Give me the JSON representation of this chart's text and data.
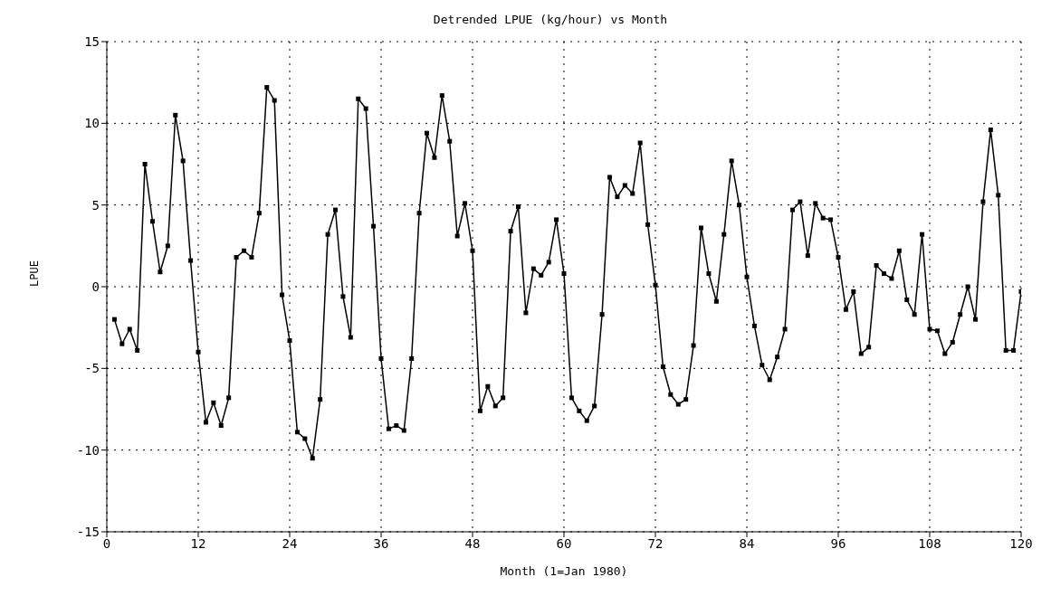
{
  "chart_data": {
    "type": "line",
    "title": "Detrended LPUE (kg/hour) vs Month",
    "xlabel": "Month (1=Jan 1980)",
    "ylabel": "LPUE",
    "x": [
      1,
      2,
      3,
      4,
      5,
      6,
      7,
      8,
      9,
      10,
      11,
      12,
      13,
      14,
      15,
      16,
      17,
      18,
      19,
      20,
      21,
      22,
      23,
      24,
      25,
      26,
      27,
      28,
      29,
      30,
      31,
      32,
      33,
      34,
      35,
      36,
      37,
      38,
      39,
      40,
      41,
      42,
      43,
      44,
      45,
      46,
      47,
      48,
      49,
      50,
      51,
      52,
      53,
      54,
      55,
      56,
      57,
      58,
      59,
      60,
      61,
      62,
      63,
      64,
      65,
      66,
      67,
      68,
      69,
      70,
      71,
      72,
      73,
      74,
      75,
      76,
      77,
      78,
      79,
      80,
      81,
      82,
      83,
      84,
      85,
      86,
      87,
      88,
      89,
      90,
      91,
      92,
      93,
      94,
      95,
      96,
      97,
      98,
      99,
      100,
      101,
      102,
      103,
      104,
      105,
      106,
      107,
      108,
      109,
      110,
      111,
      112,
      113,
      114,
      115,
      116,
      117,
      118,
      119,
      120
    ],
    "series": [
      {
        "color": "#000000",
        "values": [
          -2.0,
          -3.5,
          -2.6,
          -3.9,
          7.5,
          4.0,
          0.9,
          2.5,
          10.5,
          7.7,
          1.6,
          -4.0,
          -8.3,
          -7.1,
          -8.5,
          -6.8,
          1.8,
          2.2,
          1.8,
          4.5,
          12.2,
          11.4,
          -0.5,
          -3.3,
          -8.9,
          -9.3,
          -10.5,
          -6.9,
          3.2,
          4.7,
          -0.6,
          -3.1,
          11.5,
          10.9,
          3.7,
          -4.4,
          -8.7,
          -8.5,
          -8.8,
          -4.4,
          4.5,
          9.4,
          7.9,
          11.7,
          8.9,
          3.1,
          5.1,
          2.2,
          -7.6,
          -6.1,
          -7.3,
          -6.8,
          3.4,
          4.9,
          -1.6,
          1.1,
          0.7,
          1.5,
          4.1,
          0.8,
          -6.8,
          -7.6,
          -8.2,
          -7.3,
          -1.7,
          6.7,
          5.5,
          6.2,
          5.7,
          8.8,
          3.8,
          0.1,
          -4.9,
          -6.6,
          -7.2,
          -6.9,
          -3.6,
          3.6,
          0.8,
          -0.9,
          3.2,
          7.7,
          5.0,
          0.6,
          -2.4,
          -4.8,
          -5.7,
          -4.3,
          -2.6,
          4.7,
          5.2,
          1.9,
          5.1,
          4.2,
          4.1,
          1.8,
          -1.4,
          -0.3,
          -4.1,
          -3.7,
          1.3,
          0.8,
          0.5,
          2.2,
          -0.8,
          -1.7,
          3.2,
          -2.6,
          -2.7,
          -4.1,
          -3.4,
          -1.7,
          0.0,
          -2.0,
          5.2,
          9.6,
          5.6,
          -3.9,
          -3.9,
          -0.3
        ]
      }
    ],
    "xlim": [
      0,
      120
    ],
    "xticks": [
      0,
      12,
      24,
      36,
      48,
      60,
      72,
      84,
      96,
      108,
      120
    ],
    "ylim": [
      -15,
      15
    ],
    "yticks": [
      -15,
      -10,
      -5,
      0,
      5,
      10,
      15
    ],
    "grid": true,
    "marker": "square",
    "line_style": "solid",
    "legend": false
  }
}
